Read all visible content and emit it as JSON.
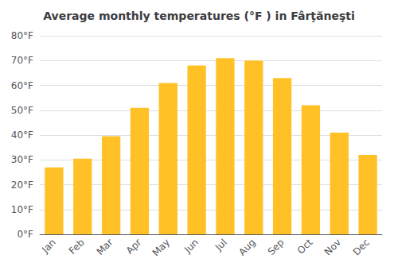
{
  "chart_data": {
    "type": "bar",
    "title": "Average monthly temperatures (°F ) in Fârţăneşti",
    "categories": [
      "Jan",
      "Feb",
      "Mar",
      "Apr",
      "May",
      "Jun",
      "Jul",
      "Aug",
      "Sep",
      "Oct",
      "Nov",
      "Dec"
    ],
    "values": [
      27,
      30.5,
      39.5,
      51,
      61,
      68,
      71,
      70,
      63,
      52,
      41,
      32
    ],
    "color": "#FFC125",
    "ylim": [
      0,
      80
    ],
    "yticks": [
      {
        "value": 0,
        "label": "0°F"
      },
      {
        "value": 10,
        "label": "10°F"
      },
      {
        "value": 20,
        "label": "20°F"
      },
      {
        "value": 30,
        "label": "30°F"
      },
      {
        "value": 40,
        "label": "40°F"
      },
      {
        "value": 50,
        "label": "50°F"
      },
      {
        "value": 60,
        "label": "60°F"
      },
      {
        "value": 70,
        "label": "70°F"
      },
      {
        "value": 80,
        "label": "80°F"
      }
    ],
    "grid": true
  }
}
